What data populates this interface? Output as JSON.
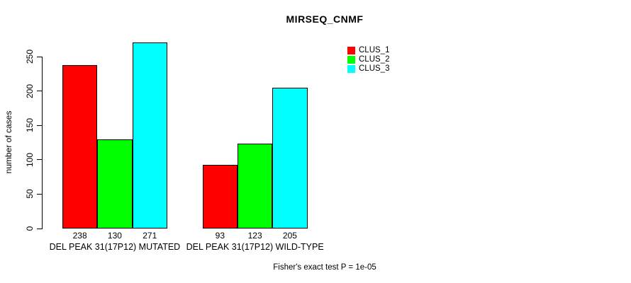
{
  "chart_data": {
    "type": "bar",
    "title": "MIRSEQ_CNMF",
    "ylabel": "number of cases",
    "xlabel": "",
    "ylim": [
      0,
      250
    ],
    "yticks": [
      0,
      50,
      100,
      150,
      200,
      250
    ],
    "grid": false,
    "legend_position": "top-right",
    "bar_border_color": "#000000",
    "categories": [
      "DEL PEAK 31(17P12) MUTATED",
      "DEL PEAK 31(17P12) WILD-TYPE"
    ],
    "series": [
      {
        "name": "CLUS_1",
        "color": "#ff0000",
        "values": [
          238,
          93
        ]
      },
      {
        "name": "CLUS_2",
        "color": "#00ff00",
        "values": [
          130,
          123
        ]
      },
      {
        "name": "CLUS_3",
        "color": "#00ffff",
        "values": [
          271,
          205
        ]
      }
    ],
    "groups": [
      {
        "label": "DEL PEAK 31(17P12) MUTATED",
        "values": [
          238,
          130,
          271
        ]
      },
      {
        "label": "DEL PEAK 31(17P12) WILD-TYPE",
        "values": [
          93,
          123,
          205
        ]
      }
    ],
    "annotation": "Fisher's exact test P = 1e-05"
  }
}
